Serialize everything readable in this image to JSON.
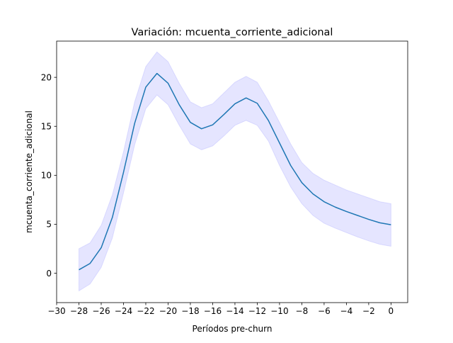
{
  "chart_data": {
    "type": "line",
    "title": "Variación: mcuenta_corriente_adicional",
    "xlabel": "Períodos pre-churn",
    "ylabel": "mcuenta_corriente_adicional",
    "xlim": [
      -30,
      1.5
    ],
    "ylim": [
      -3.0,
      23.7
    ],
    "xticks": [
      -30,
      -28,
      -26,
      -24,
      -22,
      -20,
      -18,
      -16,
      -14,
      -12,
      -10,
      -8,
      -6,
      -4,
      -2,
      0
    ],
    "xtick_labels": [
      "−30",
      "−28",
      "−26",
      "−24",
      "−22",
      "−20",
      "−18",
      "−16",
      "−14",
      "−12",
      "−10",
      "−8",
      "−6",
      "−4",
      "−2",
      "0"
    ],
    "yticks": [
      0,
      5,
      10,
      15,
      20
    ],
    "ytick_labels": [
      "0",
      "5",
      "10",
      "15",
      "20"
    ],
    "grid": false,
    "colors": {
      "line": "#1f77b4",
      "band": "#0000ff"
    },
    "series": [
      {
        "x": [
          -28,
          -27,
          -26,
          -25,
          -24,
          -23,
          -22,
          -21,
          -20,
          -19,
          -18,
          -17,
          -16,
          -15,
          -14,
          -13,
          -12,
          -11,
          -10,
          -9,
          -8,
          -7,
          -6,
          -5,
          -4,
          -3,
          -2,
          -1,
          0
        ],
        "values": [
          0.35,
          1.0,
          2.6,
          5.7,
          10.3,
          15.3,
          19.0,
          20.4,
          19.4,
          17.2,
          15.4,
          14.75,
          15.15,
          16.2,
          17.3,
          17.9,
          17.35,
          15.6,
          13.3,
          11.0,
          9.25,
          8.1,
          7.3,
          6.75,
          6.3,
          5.9,
          5.5,
          5.15,
          4.95
        ],
        "lower": [
          -1.8,
          -1.1,
          0.6,
          3.6,
          8.2,
          13.1,
          16.8,
          18.2,
          17.2,
          15.1,
          13.2,
          12.6,
          13.0,
          14.0,
          15.1,
          15.6,
          15.1,
          13.5,
          11.0,
          8.8,
          7.1,
          5.9,
          5.1,
          4.6,
          4.15,
          3.7,
          3.3,
          2.95,
          2.75
        ],
        "upper": [
          2.5,
          3.1,
          4.9,
          8.0,
          12.4,
          17.5,
          21.1,
          22.6,
          21.6,
          19.4,
          17.5,
          16.9,
          17.3,
          18.4,
          19.5,
          20.1,
          19.5,
          17.6,
          15.4,
          13.2,
          11.3,
          10.2,
          9.5,
          9.0,
          8.5,
          8.1,
          7.7,
          7.3,
          7.1
        ]
      }
    ]
  }
}
